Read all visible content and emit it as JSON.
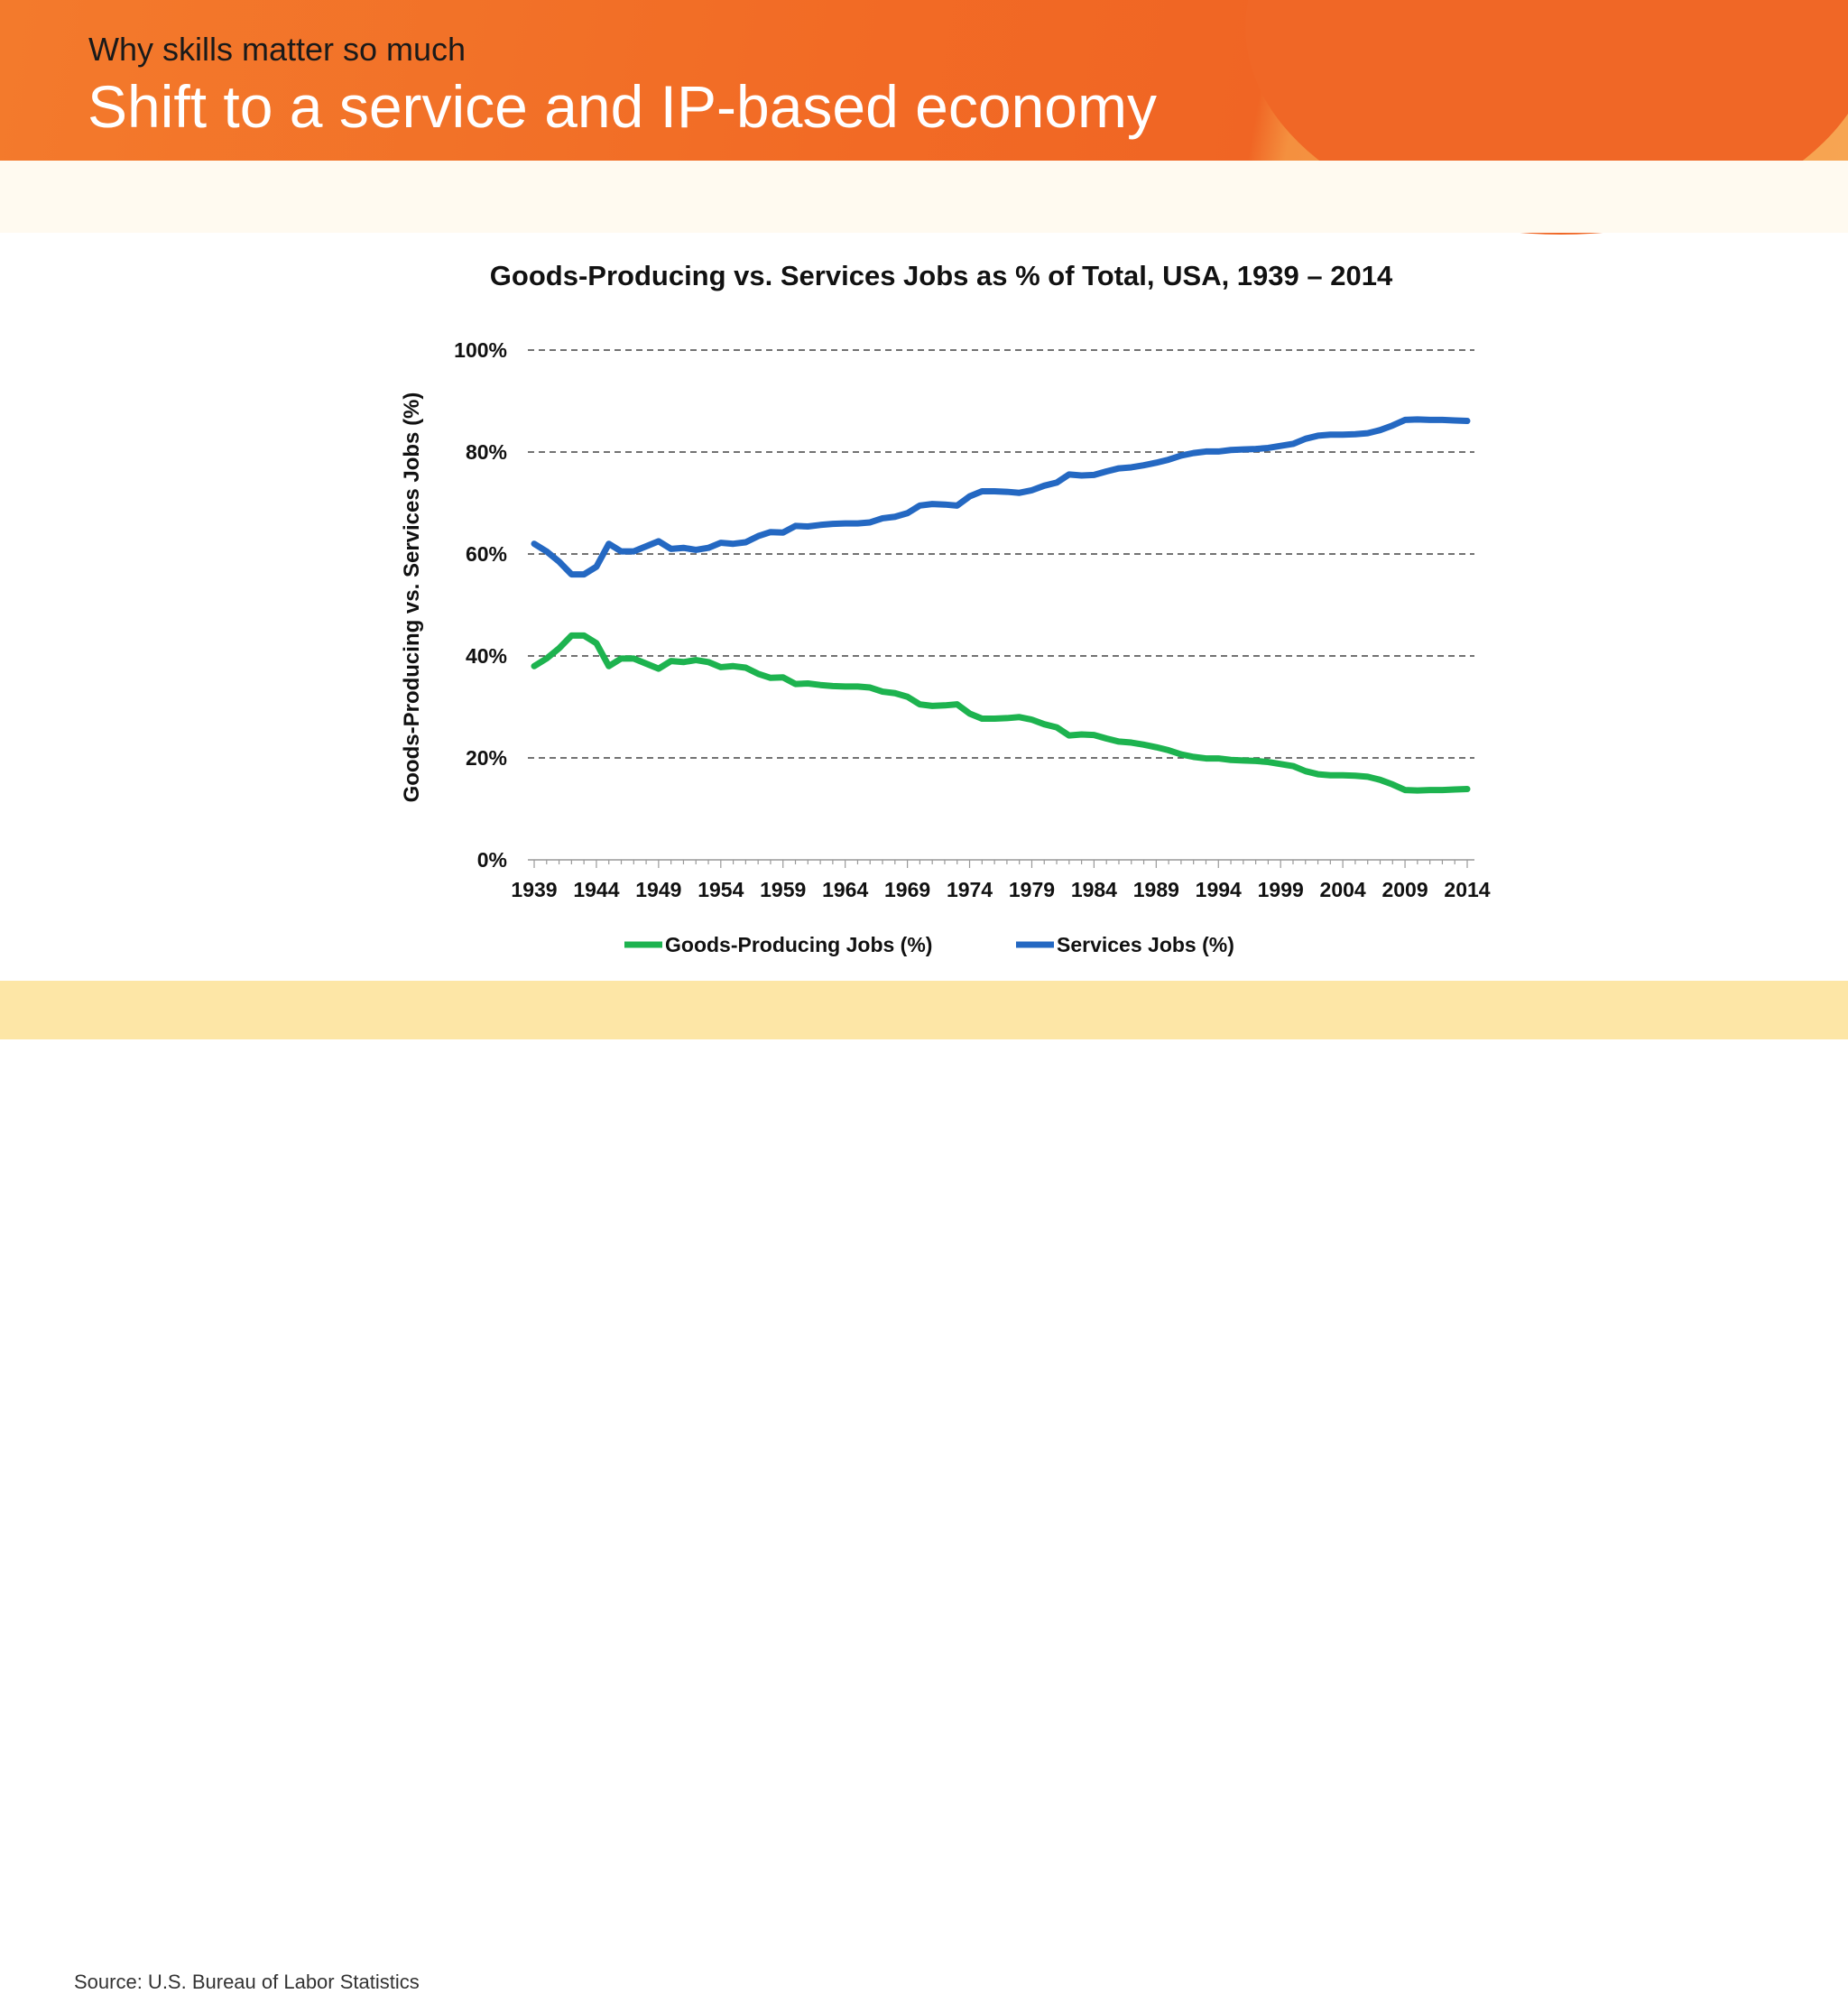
{
  "header": {
    "subtitle": "Why skills matter so much",
    "title": "Shift to a service and IP-based economy"
  },
  "footer": {
    "source": "Source: U.S. Bureau of Labor Statistics"
  },
  "chart_data": {
    "type": "line",
    "title": "Goods-Producing vs. Services Jobs as % of Total, USA, 1939 – 2014",
    "xlabel": "",
    "ylabel": "Goods-Producing vs. Services Jobs (%)",
    "xlim": [
      1939,
      2014
    ],
    "ylim": [
      0,
      100
    ],
    "x_ticks": [
      "1939",
      "1944",
      "1949",
      "1954",
      "1959",
      "1964",
      "1969",
      "1974",
      "1979",
      "1984",
      "1989",
      "1994",
      "1999",
      "2004",
      "2009",
      "2014"
    ],
    "y_ticks": [
      "0%",
      "20%",
      "40%",
      "60%",
      "80%",
      "100%"
    ],
    "grid": "horizontal dashed",
    "legend": "bottom",
    "x": [
      1939,
      1940,
      1941,
      1942,
      1943,
      1944,
      1945,
      1946,
      1947,
      1948,
      1949,
      1950,
      1951,
      1952,
      1953,
      1954,
      1955,
      1956,
      1957,
      1958,
      1959,
      1960,
      1961,
      1962,
      1963,
      1964,
      1965,
      1966,
      1967,
      1968,
      1969,
      1970,
      1971,
      1972,
      1973,
      1974,
      1975,
      1976,
      1977,
      1978,
      1979,
      1980,
      1981,
      1982,
      1983,
      1984,
      1985,
      1986,
      1987,
      1988,
      1989,
      1990,
      1991,
      1992,
      1993,
      1994,
      1995,
      1996,
      1997,
      1998,
      1999,
      2000,
      2001,
      2002,
      2003,
      2004,
      2005,
      2006,
      2007,
      2008,
      2009,
      2010,
      2011,
      2012,
      2013,
      2014
    ],
    "series": [
      {
        "name": "Goods-Producing Jobs (%)",
        "color": "#1db34f",
        "values": [
          38,
          39.5,
          41.5,
          44,
          44,
          42.5,
          38,
          39.5,
          39.5,
          38.5,
          37.5,
          39,
          38.8,
          39.2,
          38.8,
          37.8,
          38,
          37.7,
          36.5,
          35.7,
          35.8,
          34.5,
          34.6,
          34.3,
          34.1,
          34,
          34,
          33.8,
          33,
          32.7,
          32,
          30.5,
          30.2,
          30.3,
          30.5,
          28.7,
          27.7,
          27.7,
          27.8,
          28,
          27.5,
          26.6,
          26,
          24.4,
          24.6,
          24.5,
          23.8,
          23.2,
          23,
          22.6,
          22.1,
          21.5,
          20.7,
          20.2,
          19.9,
          19.9,
          19.6,
          19.5,
          19.4,
          19.2,
          18.8,
          18.4,
          17.4,
          16.8,
          16.6,
          16.6,
          16.5,
          16.3,
          15.7,
          14.8,
          13.7,
          13.6,
          13.7,
          13.7,
          13.8,
          13.9
        ]
      },
      {
        "name": "Services Jobs (%)",
        "color": "#2468c2",
        "values": [
          62,
          60.5,
          58.5,
          56,
          56,
          57.5,
          62,
          60.5,
          60.5,
          61.5,
          62.5,
          61,
          61.2,
          60.8,
          61.2,
          62.2,
          62,
          62.3,
          63.5,
          64.3,
          64.2,
          65.5,
          65.4,
          65.7,
          65.9,
          66,
          66,
          66.2,
          67,
          67.3,
          68,
          69.5,
          69.8,
          69.7,
          69.5,
          71.3,
          72.3,
          72.3,
          72.2,
          72,
          72.5,
          73.4,
          74,
          75.6,
          75.4,
          75.5,
          76.2,
          76.8,
          77,
          77.4,
          77.9,
          78.5,
          79.3,
          79.8,
          80.1,
          80.1,
          80.4,
          80.5,
          80.6,
          80.8,
          81.2,
          81.6,
          82.6,
          83.2,
          83.4,
          83.4,
          83.5,
          83.7,
          84.3,
          85.2,
          86.3,
          86.4,
          86.3,
          86.3,
          86.2,
          86.1
        ]
      }
    ]
  }
}
